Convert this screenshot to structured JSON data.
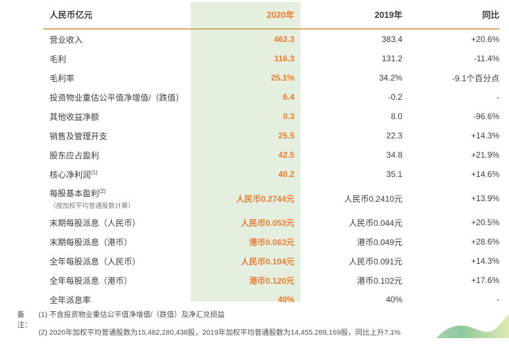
{
  "colors": {
    "accent_orange": "#ee7c31",
    "highlight_green": "#e5efdf",
    "rule_gold": "#d8ab62",
    "text_dark": "#3d3d3d",
    "wave_green_dark": "#8fc89f",
    "wave_green_light": "#deeab0"
  },
  "table": {
    "header": {
      "unit": "人民币亿元",
      "y2020": "2020年",
      "y2019": "2019年",
      "yoy": "同比"
    },
    "rows": [
      {
        "label": "营业收入",
        "v2020": "462.3",
        "v2019": "383.4",
        "yoy": "+20.6%"
      },
      {
        "label": "毛利",
        "v2020": "116.3",
        "v2019": "131.2",
        "yoy": "-11.4%"
      },
      {
        "label": "毛利率",
        "v2020": "25.1%",
        "v2019": "34.2%",
        "yoy": "-9.1个百分点"
      },
      {
        "label": "投资物业重估公平值净增值/（跌值）",
        "v2020": "6.4",
        "v2019": "-0.2",
        "yoy": "-"
      },
      {
        "label": "其他收益净额",
        "v2020": "0.3",
        "v2019": "8.0",
        "yoy": "-96.6%"
      },
      {
        "label": "销售及管理开支",
        "v2020": "25.5",
        "v2019": "22.3",
        "yoy": "+14.3%"
      },
      {
        "label": "股东应占盈利",
        "v2020": "42.5",
        "v2019": "34.8",
        "yoy": "+21.9%"
      },
      {
        "label": "核心净利润",
        "sup": "(1)",
        "v2020": "40.2",
        "v2019": "35.1",
        "yoy": "+14.6%"
      },
      {
        "label": "每股基本盈利",
        "sup": "(2)",
        "sublabel": "（按加权平均普通股数计算）",
        "v2020": "人民币0.2744元",
        "v2019": "人民币0.2410元",
        "yoy": "+13.9%"
      },
      {
        "label": "末期每股派息（人民币）",
        "v2020": "人民币0.053元",
        "v2019": "人民币0.044元",
        "yoy": "+20.5%"
      },
      {
        "label": "末期每股派息（港币）",
        "v2020": "港币0.063元",
        "v2019": "港币0.049元",
        "yoy": "+28.6%"
      },
      {
        "label": "全年每股派息（人民币）",
        "v2020": "人民币0.104元",
        "v2019": "人民币0.091元",
        "yoy": "+14.3%"
      },
      {
        "label": "全年每股派息（港币）",
        "v2020": "港币0.120元",
        "v2019": "港币0.102元",
        "yoy": "+17.6%"
      },
      {
        "label": "全年派息率",
        "v2020": "40%",
        "v2019": "40%",
        "yoy": "-"
      }
    ]
  },
  "notes": {
    "label": "备注：",
    "items": [
      "(1) 不含投资物业重估公平值净增值/（跌值）及净汇兑损益",
      "(2) 2020年加权平均普通股数为15,482,280,438股，2019年加权平均普通股数为14,455,289,169股，同比上升7.1%"
    ]
  },
  "decor": {
    "wave_icon": "green-wave-graphic"
  }
}
